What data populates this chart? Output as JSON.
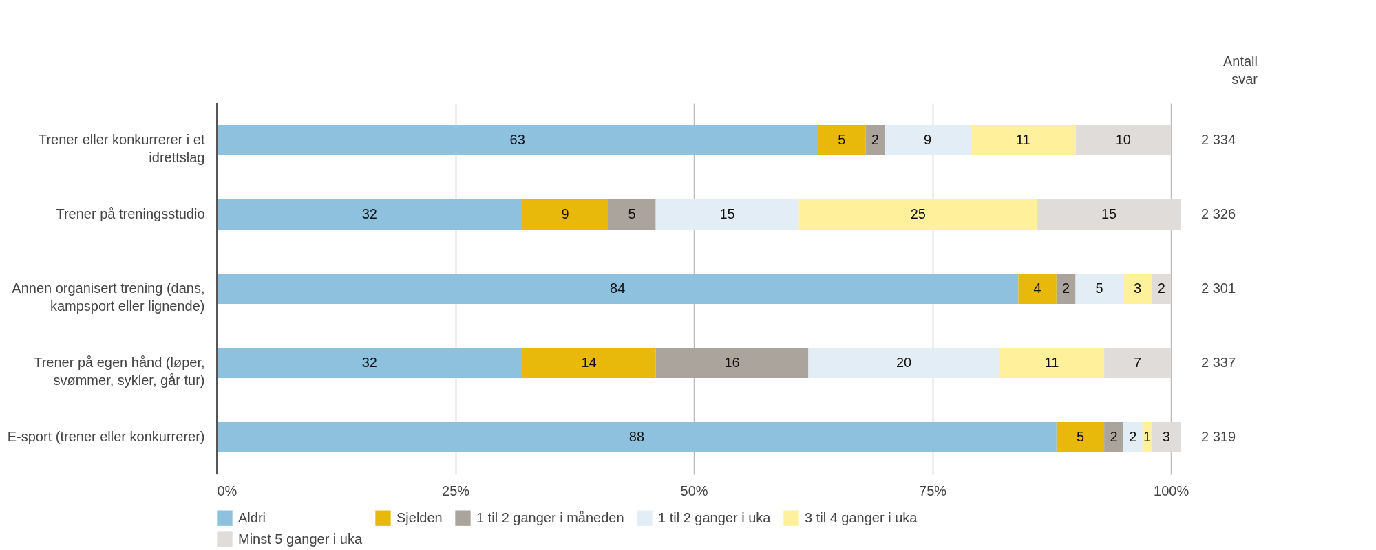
{
  "chart_data": {
    "type": "bar",
    "orientation": "horizontal",
    "stacked": true,
    "data_labels": true,
    "grid": "x",
    "legend": "bottom",
    "categories": [
      "Trener eller konkurrerer i et idrettslag",
      "Trener på treningsstudio",
      "Annen organisert trening (dans, kampsport eller lignende)",
      "Trener på egen hånd (løper, svømmer, sykler, går tur)",
      "E-sport (trener eller konkurrerer)"
    ],
    "series": [
      {
        "name": "Aldri",
        "color": "#8dc1de",
        "values": [
          63,
          32,
          84,
          32,
          88
        ]
      },
      {
        "name": "Sjelden",
        "color": "#e8b90a",
        "values": [
          5,
          9,
          4,
          14,
          5
        ]
      },
      {
        "name": "1 til 2 ganger i måneden",
        "color": "#aba49c",
        "values": [
          2,
          5,
          2,
          16,
          2
        ]
      },
      {
        "name": "1 til 2 ganger i uka",
        "color": "#e3edf5",
        "values": [
          9,
          15,
          5,
          20,
          2
        ]
      },
      {
        "name": "3 til 4 ganger i uka",
        "color": "#fff09c",
        "values": [
          11,
          25,
          3,
          11,
          1
        ]
      },
      {
        "name": "Minst 5 ganger i uka",
        "color": "#e0dcd9",
        "values": [
          10,
          15,
          2,
          7,
          3
        ]
      }
    ],
    "xlim": [
      0,
      101
    ],
    "xticks": [
      {
        "value": 0,
        "label": "0%"
      },
      {
        "value": 25,
        "label": "25%"
      },
      {
        "value": 50,
        "label": "50%"
      },
      {
        "value": 75,
        "label": "75%"
      },
      {
        "value": 100,
        "label": "100%"
      }
    ],
    "annotations": [
      "Antall svar",
      "2 334",
      "2 326",
      "2 301",
      "2 337",
      "2 319"
    ]
  }
}
